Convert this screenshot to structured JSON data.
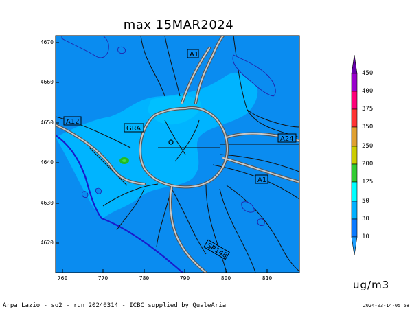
{
  "title": "max 15MAR2024",
  "map": {
    "y_ticks": [
      "4670",
      "4660",
      "4650",
      "4640",
      "4630",
      "4620"
    ],
    "x_ticks": [
      "760",
      "770",
      "780",
      "790",
      "800",
      "810"
    ],
    "road_labels": [
      "A1",
      "A12",
      "GRA",
      "A24",
      "A1",
      "SR148"
    ]
  },
  "colorbar": {
    "labels": [
      "450",
      "400",
      "375",
      "350",
      "250",
      "200",
      "125",
      "50",
      "30",
      "10"
    ],
    "colors": [
      "#6600aa",
      "#9900cc",
      "#ff0077",
      "#ff3333",
      "#e0a030",
      "#cccc00",
      "#33cc33",
      "#00ffff",
      "#00b0ff",
      "#0a7aff"
    ]
  },
  "unit": "ug/m3",
  "footer": {
    "left": "Arpa Lazio - so2 - run 20240314 - ICBC supplied by QualeAria",
    "right": "2024-03-14-05:58"
  }
}
